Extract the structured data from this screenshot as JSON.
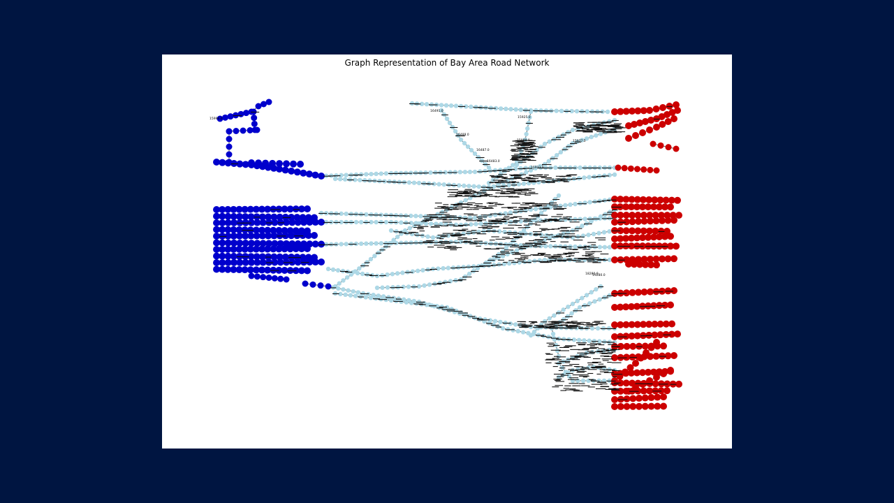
{
  "figure": {
    "title": "Graph Representation of Bay Area Road Network"
  },
  "colors": {
    "page_background": "#001541",
    "figure_background": "#ffffff",
    "source_nodes": "#0000cc",
    "sink_nodes": "#cc0000",
    "intermediate_nodes": "#add8e6",
    "edges": "#606060",
    "node_labels": "#000000"
  },
  "node_labels_readable": [
    "15996.0",
    "16491.0",
    "16488.0",
    "16487.0",
    "16483.0",
    "15925.0",
    "15988.0",
    "15977.0",
    "18280.0",
    "19280.0",
    "15923.0"
  ]
}
